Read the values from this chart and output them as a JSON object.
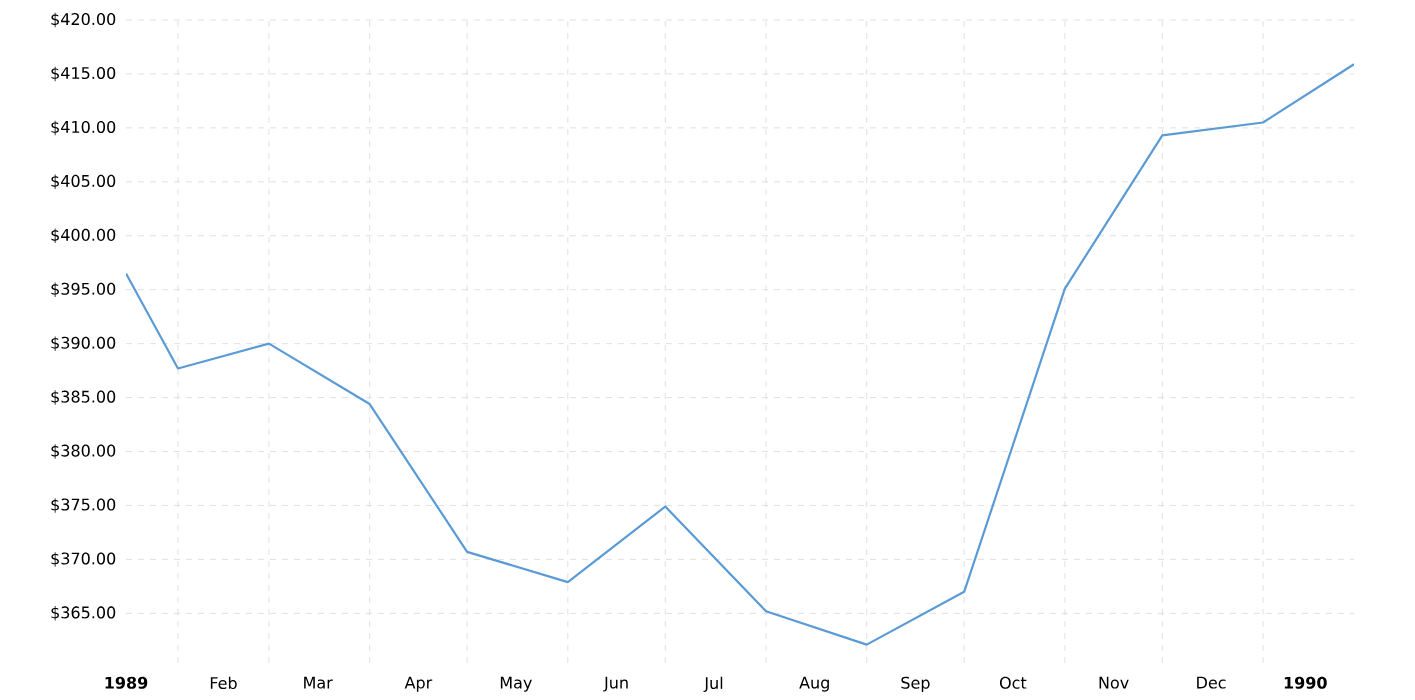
{
  "chart_data": {
    "type": "line",
    "x": [
      "1989-01-15",
      "1989-01-31",
      "1989-02-28",
      "1989-03-31",
      "1989-04-30",
      "1989-05-31",
      "1989-06-30",
      "1989-07-31",
      "1989-08-31",
      "1989-09-30",
      "1989-10-31",
      "1989-11-30",
      "1989-12-31",
      "1990-01-28"
    ],
    "series": [
      {
        "color": "#5b9bd5",
        "values": [
          396.5,
          387.7,
          390.0,
          384.4,
          370.7,
          367.9,
          374.9,
          365.2,
          362.1,
          367.0,
          395.1,
          409.3,
          410.5,
          415.9
        ]
      }
    ],
    "xlim": [
      "1989-01-15",
      "1990-01-28"
    ],
    "xticks": [
      {
        "value": "1989-01-15",
        "label": "**1989**"
      },
      {
        "value": "1989-02-14",
        "label": "Feb"
      },
      {
        "value": "1989-03-15",
        "label": "Mar"
      },
      {
        "value": "1989-04-15",
        "label": "Apr"
      },
      {
        "value": "1989-05-15",
        "label": "May"
      },
      {
        "value": "1989-06-15",
        "label": "Jun"
      },
      {
        "value": "1989-07-15",
        "label": "Jul"
      },
      {
        "value": "1989-08-15",
        "label": "Aug"
      },
      {
        "value": "1989-09-15",
        "label": "Sep"
      },
      {
        "value": "1989-10-15",
        "label": "Oct"
      },
      {
        "value": "1989-11-15",
        "label": "Nov"
      },
      {
        "value": "1989-12-15",
        "label": "Dec"
      },
      {
        "value": "1990-01-13",
        "label": "**1990**"
      },
      {
        "value": "1989-01-31",
        "label": null
      },
      {
        "value": "1989-02-28",
        "label": null
      },
      {
        "value": "1989-03-31",
        "label": null
      },
      {
        "value": "1989-04-30",
        "label": null
      },
      {
        "value": "1989-05-31",
        "label": null
      },
      {
        "value": "1989-06-30",
        "label": null
      },
      {
        "value": "1989-07-31",
        "label": null
      },
      {
        "value": "1989-08-31",
        "label": null
      },
      {
        "value": "1989-09-30",
        "label": null
      },
      {
        "value": "1989-10-31",
        "label": null
      },
      {
        "value": "1989-11-30",
        "label": null
      },
      {
        "value": "1989-12-31",
        "label": null
      }
    ],
    "ylim": [
      360.4,
      420
    ],
    "yticks": [
      {
        "value": 365,
        "label": "$365.00"
      },
      {
        "value": 370,
        "label": "$370.00"
      },
      {
        "value": 375,
        "label": "$375.00"
      },
      {
        "value": 380,
        "label": "$380.00"
      },
      {
        "value": 385,
        "label": "$385.00"
      },
      {
        "value": 390,
        "label": "$390.00"
      },
      {
        "value": 395,
        "label": "$395.00"
      },
      {
        "value": 400,
        "label": "$400.00"
      },
      {
        "value": 405,
        "label": "$405.00"
      },
      {
        "value": 410,
        "label": "$410.00"
      },
      {
        "value": 415,
        "label": "$415.00"
      },
      {
        "value": 420,
        "label": "$420.00"
      }
    ],
    "grid": true,
    "marker": "none",
    "line_style": "solid"
  }
}
